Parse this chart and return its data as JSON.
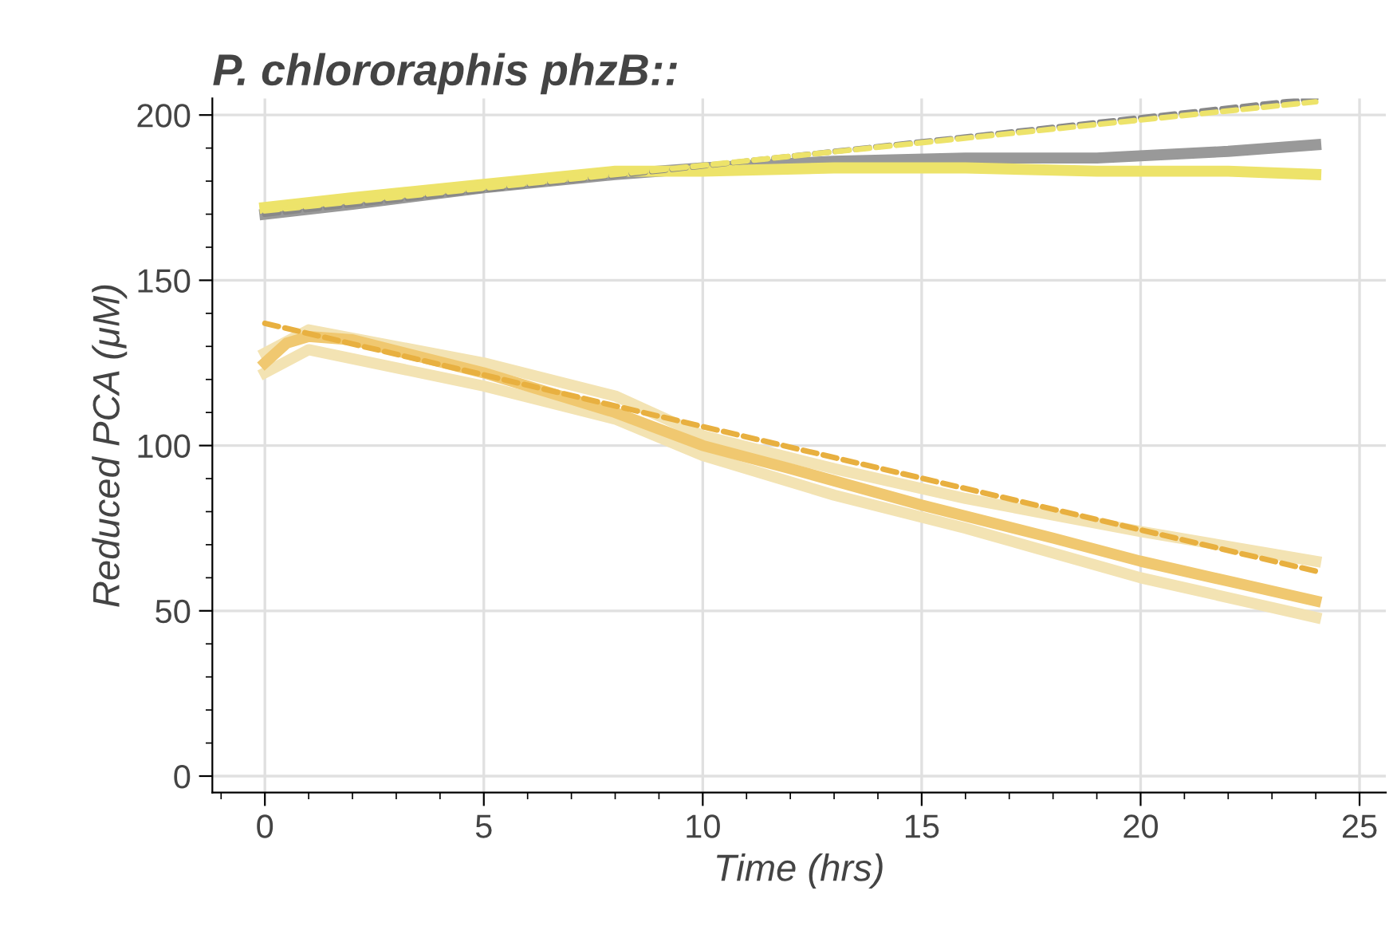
{
  "chart_data": {
    "type": "line",
    "title": "P. chlororaphis phzB::",
    "xlabel": "Time (hrs)",
    "ylabel": "Reduced PCA (μM)",
    "xlim": [
      -1.2,
      25.6
    ],
    "ylim": [
      -5,
      205
    ],
    "xticks": [
      0,
      5,
      10,
      15,
      20,
      25
    ],
    "yticks": [
      0,
      50,
      100,
      150,
      200
    ],
    "grid": true,
    "legend": false,
    "marker": "none",
    "series": [
      {
        "color": "#f3e3b3",
        "line_style": "solid",
        "x": [
          0,
          1,
          5,
          8,
          10,
          13,
          16,
          20,
          24
        ],
        "values": [
          128,
          135,
          125,
          115,
          103,
          93,
          84,
          74,
          65
        ]
      },
      {
        "color": "#f3e3b3",
        "line_style": "solid",
        "x": [
          0,
          1,
          5,
          8,
          10,
          13,
          16,
          20,
          24
        ],
        "values": [
          122,
          129,
          118,
          108,
          97,
          85,
          75,
          60,
          48
        ]
      },
      {
        "color": "#999999",
        "line_style": "solid",
        "x": [
          0,
          2,
          5,
          8,
          10,
          13,
          16,
          19,
          22,
          24
        ],
        "values": [
          170,
          173,
          178,
          182,
          184,
          186,
          187,
          187,
          189,
          191
        ]
      },
      {
        "color": "#ede36a",
        "line_style": "solid",
        "x": [
          0,
          2,
          5,
          8,
          10,
          13,
          16,
          19,
          22,
          24
        ],
        "values": [
          172,
          175,
          179,
          183,
          183,
          184,
          184,
          183,
          183,
          182
        ]
      },
      {
        "color": "#f0c870",
        "line_style": "solid",
        "x": [
          0,
          0.5,
          1,
          2,
          5,
          8,
          10,
          12,
          15,
          18,
          20,
          22,
          24
        ],
        "values": [
          125,
          131,
          133,
          132,
          122,
          110,
          100,
          93,
          82,
          72,
          65,
          59,
          53
        ]
      },
      {
        "color": "#888888",
        "line_style": "dashed",
        "x": [
          0,
          24
        ],
        "values": [
          170,
          205
        ]
      },
      {
        "color": "#ede36a",
        "line_style": "dashed",
        "x": [
          0,
          24
        ],
        "values": [
          171,
          204
        ]
      },
      {
        "color": "#e8b040",
        "line_style": "dashed",
        "x": [
          0,
          24
        ],
        "values": [
          137,
          62
        ]
      }
    ]
  }
}
